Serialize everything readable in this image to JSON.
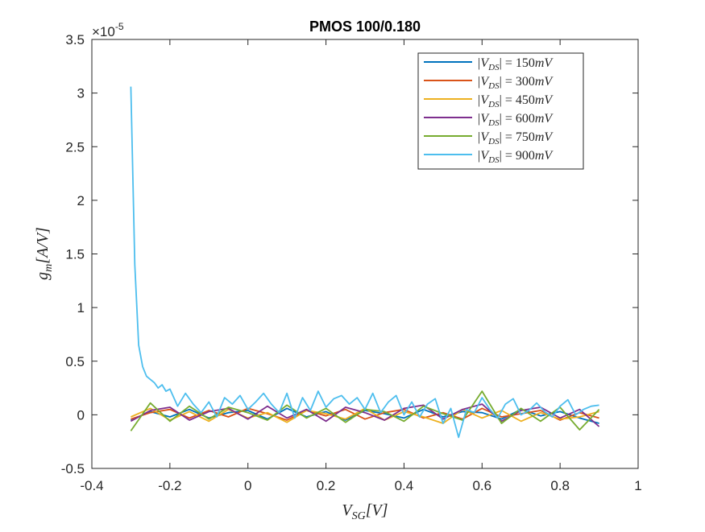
{
  "chart_data": {
    "type": "line",
    "title": "PMOS 100/0.180",
    "xlabel": {
      "base": "V",
      "sub": "SG",
      "unit": "[V]"
    },
    "ylabel": {
      "base": "g",
      "sub": "m",
      "unit": "[A/V]"
    },
    "y_multiplier": {
      "base": "×10",
      "exp": "-5"
    },
    "xlim": [
      -0.4,
      1
    ],
    "ylim": [
      -0.5,
      3.5
    ],
    "x_ticks": [
      -0.4,
      -0.2,
      0,
      0.2,
      0.4,
      0.6,
      0.8,
      1
    ],
    "x_tick_labels": [
      "-0.4",
      "-0.2",
      "0",
      "0.2",
      "0.4",
      "0.6",
      "0.8",
      "1"
    ],
    "y_ticks": [
      -0.5,
      0,
      0.5,
      1,
      1.5,
      2,
      2.5,
      3,
      3.5
    ],
    "y_tick_labels": [
      "-0.5",
      "0",
      "0.5",
      "1",
      "1.5",
      "2",
      "2.5",
      "3",
      "3.5"
    ],
    "y_units_note": "values in units of 1e-5 A/V",
    "grid": false,
    "legend_position": "top-right",
    "series": [
      {
        "name": "|V_DS| = 150mV",
        "label_parts": {
          "a": "|V",
          "sub": "DS",
          "b": "| = 150",
          "unit": "mV"
        },
        "color": "#0072BD",
        "x": [
          -0.3,
          -0.25,
          -0.2,
          -0.15,
          -0.1,
          -0.05,
          0.0,
          0.05,
          0.1,
          0.15,
          0.2,
          0.25,
          0.3,
          0.35,
          0.4,
          0.45,
          0.5,
          0.55,
          0.6,
          0.65,
          0.7,
          0.75,
          0.8,
          0.85,
          0.9
        ],
        "y": [
          -0.05,
          0.03,
          -0.02,
          0.05,
          -0.03,
          0.02,
          0.04,
          -0.04,
          0.06,
          -0.02,
          0.03,
          -0.05,
          0.04,
          0.01,
          -0.03,
          0.05,
          -0.02,
          0.03,
          0.02,
          -0.04,
          0.05,
          -0.01,
          0.03,
          -0.03,
          -0.08
        ]
      },
      {
        "name": "|V_DS| = 300mV",
        "label_parts": {
          "a": "|V",
          "sub": "DS",
          "b": "| = 300",
          "unit": "mV"
        },
        "color": "#D95319",
        "x": [
          -0.3,
          -0.25,
          -0.2,
          -0.15,
          -0.1,
          -0.05,
          0.0,
          0.05,
          0.1,
          0.15,
          0.2,
          0.25,
          0.3,
          0.35,
          0.4,
          0.45,
          0.5,
          0.55,
          0.6,
          0.65,
          0.7,
          0.75,
          0.8,
          0.85,
          0.9
        ],
        "y": [
          -0.04,
          0.02,
          0.05,
          -0.03,
          0.04,
          -0.02,
          0.06,
          0.01,
          -0.05,
          0.04,
          -0.01,
          0.05,
          -0.04,
          0.02,
          0.05,
          -0.03,
          0.02,
          -0.04,
          0.06,
          -0.02,
          0.01,
          0.04,
          -0.05,
          0.02,
          -0.03
        ]
      },
      {
        "name": "|V_DS| = 450mV",
        "label_parts": {
          "a": "|V",
          "sub": "DS",
          "b": "| = 450",
          "unit": "mV"
        },
        "color": "#EDB120",
        "x": [
          -0.3,
          -0.25,
          -0.2,
          -0.15,
          -0.1,
          -0.05,
          0.0,
          0.05,
          0.1,
          0.15,
          0.2,
          0.25,
          0.3,
          0.35,
          0.4,
          0.45,
          0.5,
          0.55,
          0.6,
          0.65,
          0.7,
          0.75,
          0.8,
          0.85,
          0.9
        ],
        "y": [
          -0.02,
          0.06,
          -0.05,
          0.03,
          -0.06,
          0.05,
          -0.03,
          0.02,
          -0.07,
          0.04,
          0.01,
          -0.04,
          0.06,
          -0.05,
          0.03,
          -0.02,
          -0.08,
          0.05,
          -0.03,
          0.04,
          -0.06,
          0.02,
          -0.04,
          -0.02,
          0.03
        ]
      },
      {
        "name": "|V_DS| = 600mV",
        "label_parts": {
          "a": "|V",
          "sub": "DS",
          "b": "| = 600",
          "unit": "mV"
        },
        "color": "#7E2F8E",
        "x": [
          -0.3,
          -0.25,
          -0.2,
          -0.15,
          -0.1,
          -0.05,
          0.0,
          0.05,
          0.1,
          0.15,
          0.2,
          0.25,
          0.3,
          0.35,
          0.4,
          0.45,
          0.5,
          0.55,
          0.6,
          0.65,
          0.7,
          0.75,
          0.8,
          0.85,
          0.9
        ],
        "y": [
          -0.06,
          0.04,
          0.07,
          -0.05,
          0.03,
          0.06,
          -0.04,
          0.08,
          -0.03,
          0.05,
          -0.06,
          0.07,
          0.02,
          -0.05,
          0.06,
          0.09,
          -0.04,
          0.05,
          0.1,
          -0.06,
          0.04,
          0.07,
          -0.03,
          0.05,
          -0.11
        ]
      },
      {
        "name": "|V_DS| = 750mV",
        "label_parts": {
          "a": "|V",
          "sub": "DS",
          "b": "| = 750",
          "unit": "mV"
        },
        "color": "#77AC30",
        "x": [
          -0.3,
          -0.25,
          -0.2,
          -0.15,
          -0.1,
          -0.05,
          0.0,
          0.05,
          0.1,
          0.15,
          0.2,
          0.25,
          0.3,
          0.35,
          0.4,
          0.45,
          0.5,
          0.55,
          0.6,
          0.65,
          0.7,
          0.75,
          0.8,
          0.85,
          0.9
        ],
        "y": [
          -0.15,
          0.11,
          -0.06,
          0.08,
          -0.04,
          0.07,
          0.02,
          -0.05,
          0.09,
          -0.03,
          0.06,
          -0.07,
          0.05,
          0.03,
          -0.06,
          0.08,
          0.01,
          -0.05,
          0.22,
          -0.08,
          0.06,
          -0.06,
          0.07,
          -0.14,
          0.05
        ]
      },
      {
        "name": "|V_DS| = 900mV",
        "label_parts": {
          "a": "|V",
          "sub": "DS",
          "b": "| = 900",
          "unit": "mV"
        },
        "color": "#4DBEEE",
        "x": [
          -0.3,
          -0.29,
          -0.28,
          -0.27,
          -0.26,
          -0.25,
          -0.24,
          -0.23,
          -0.22,
          -0.21,
          -0.2,
          -0.18,
          -0.16,
          -0.14,
          -0.12,
          -0.1,
          -0.08,
          -0.06,
          -0.04,
          -0.02,
          0.0,
          0.02,
          0.04,
          0.06,
          0.08,
          0.1,
          0.12,
          0.14,
          0.16,
          0.18,
          0.2,
          0.22,
          0.24,
          0.26,
          0.28,
          0.3,
          0.32,
          0.34,
          0.36,
          0.38,
          0.4,
          0.42,
          0.44,
          0.46,
          0.48,
          0.5,
          0.52,
          0.54,
          0.56,
          0.58,
          0.6,
          0.62,
          0.64,
          0.66,
          0.68,
          0.7,
          0.72,
          0.74,
          0.76,
          0.78,
          0.8,
          0.82,
          0.84,
          0.86,
          0.88,
          0.9
        ],
        "y": [
          3.06,
          1.4,
          0.65,
          0.45,
          0.36,
          0.33,
          0.3,
          0.25,
          0.28,
          0.22,
          0.24,
          0.08,
          0.2,
          0.1,
          0.02,
          0.12,
          -0.02,
          0.16,
          0.1,
          0.18,
          0.05,
          0.12,
          0.2,
          0.1,
          0.02,
          0.2,
          -0.03,
          0.16,
          0.04,
          0.22,
          0.07,
          0.15,
          0.18,
          0.1,
          0.16,
          0.05,
          0.2,
          0.02,
          0.12,
          0.18,
          0.0,
          0.12,
          -0.02,
          0.1,
          0.15,
          -0.08,
          0.06,
          -0.21,
          0.05,
          0.02,
          0.16,
          0.05,
          -0.03,
          0.1,
          0.15,
          0.0,
          0.04,
          0.11,
          0.03,
          -0.02,
          0.08,
          0.14,
          0.0,
          0.05,
          0.08,
          0.09
        ]
      }
    ]
  }
}
